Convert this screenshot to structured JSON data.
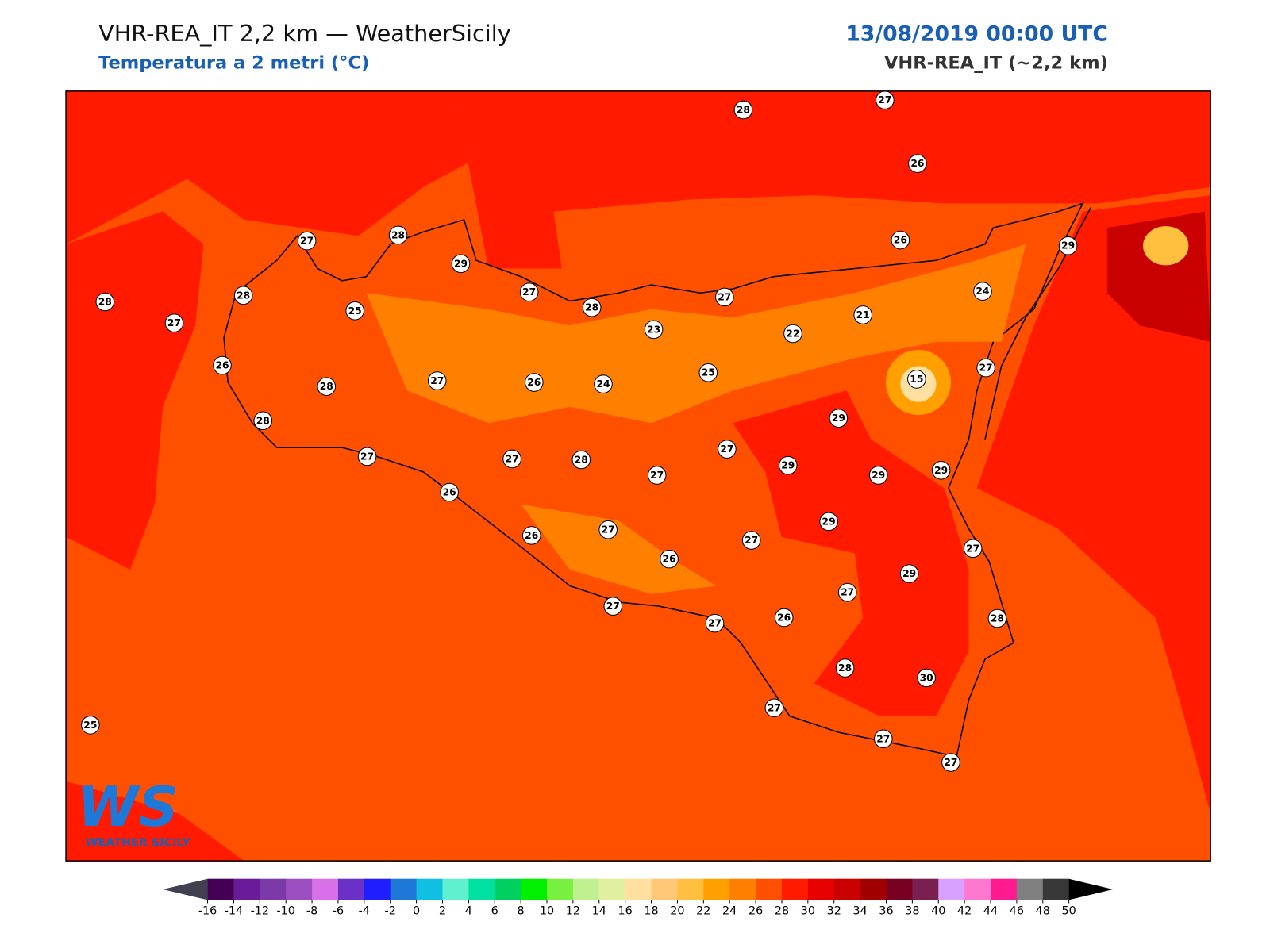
{
  "header": {
    "title": "VHR-REA_IT 2,2 km — WeatherSicily",
    "subtitle": "Temperatura a 2 metri (°C)",
    "date": "13/08/2019 00:00 UTC",
    "model": "VHR-REA_IT (~2,2 km)"
  },
  "stations": [
    27,
    28,
    26,
    27,
    28,
    29,
    26,
    29,
    28,
    28,
    27,
    25,
    27,
    28,
    27,
    24,
    21,
    22,
    23,
    26,
    28,
    27,
    26,
    24,
    25,
    15,
    27,
    28,
    29,
    27,
    27,
    28,
    27,
    29,
    29,
    29,
    27,
    26,
    29,
    26,
    27,
    27,
    27,
    26,
    29,
    27,
    27,
    27,
    26,
    28,
    28,
    30,
    27,
    27,
    27,
    25
  ],
  "colorbar": {
    "ticks": [
      -16,
      -14,
      -12,
      -10,
      -8,
      -6,
      -4,
      -2,
      0,
      2,
      4,
      6,
      8,
      10,
      12,
      14,
      16,
      18,
      20,
      22,
      24,
      26,
      28,
      30,
      32,
      34,
      36,
      38,
      40,
      42,
      44,
      46,
      48,
      50
    ],
    "colors": [
      "#440055",
      "#6a1b9a",
      "#7b3aa8",
      "#9c4fc0",
      "#d870e8",
      "#6a30c8",
      "#1e1eff",
      "#1e78d8",
      "#10c0e0",
      "#60f0d0",
      "#00e0a0",
      "#00d060",
      "#00f000",
      "#78f040",
      "#c0f090",
      "#e0f0a0",
      "#ffe0a0",
      "#ffc878",
      "#ffc040",
      "#ffa000",
      "#ff8000",
      "#ff5000",
      "#ff1a00",
      "#e60000",
      "#c80000",
      "#a00000",
      "#780020",
      "#7a2050",
      "#d8a0ff",
      "#ff78d0",
      "#ff1a90",
      "#808080",
      "#383838"
    ]
  },
  "logo": {
    "mark": "WS",
    "text": "WEATHER SICILY"
  }
}
